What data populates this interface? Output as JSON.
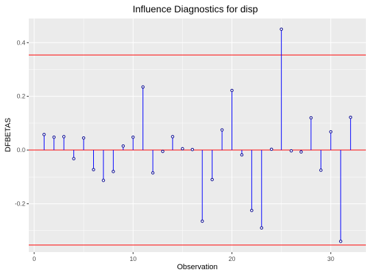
{
  "colors": {
    "panel_background": "#ebebeb",
    "grid_major": "#ffffff",
    "stem": "#0000ff",
    "point": "#00008b",
    "threshold": "#ff0000",
    "zero_line": "#ff0000",
    "tick_text": "#4d4d4d"
  },
  "chart_data": {
    "type": "scatter",
    "style": "lollipop",
    "title": "Influence Diagnostics for disp",
    "xlabel": "Observation",
    "ylabel": "DFBETAS",
    "xlim": [
      -0.55,
      33.55
    ],
    "ylim": [
      -0.38,
      0.49
    ],
    "x_ticks": [
      0,
      10,
      20,
      30
    ],
    "x_tick_labels": [
      "0",
      "10",
      "20",
      "30"
    ],
    "y_ticks": [
      -0.2,
      0.0,
      0.2,
      0.4
    ],
    "y_tick_labels": [
      "-0.2",
      "0.0",
      "0.2",
      "0.4"
    ],
    "grid": true,
    "thresholds": [
      0.354,
      -0.354
    ],
    "baseline": 0.0,
    "x": [
      1,
      2,
      3,
      4,
      5,
      6,
      7,
      8,
      9,
      10,
      11,
      12,
      13,
      14,
      15,
      16,
      17,
      18,
      19,
      20,
      21,
      22,
      23,
      24,
      25,
      26,
      27,
      28,
      29,
      30,
      31,
      32
    ],
    "y": [
      0.058,
      0.048,
      0.05,
      -0.032,
      0.045,
      -0.073,
      -0.113,
      -0.08,
      0.015,
      0.048,
      0.235,
      -0.085,
      -0.005,
      0.05,
      0.005,
      0.002,
      -0.265,
      -0.11,
      0.075,
      0.222,
      -0.018,
      -0.225,
      -0.29,
      0.003,
      0.45,
      -0.003,
      -0.007,
      0.12,
      -0.075,
      0.068,
      -0.34,
      0.122
    ]
  }
}
